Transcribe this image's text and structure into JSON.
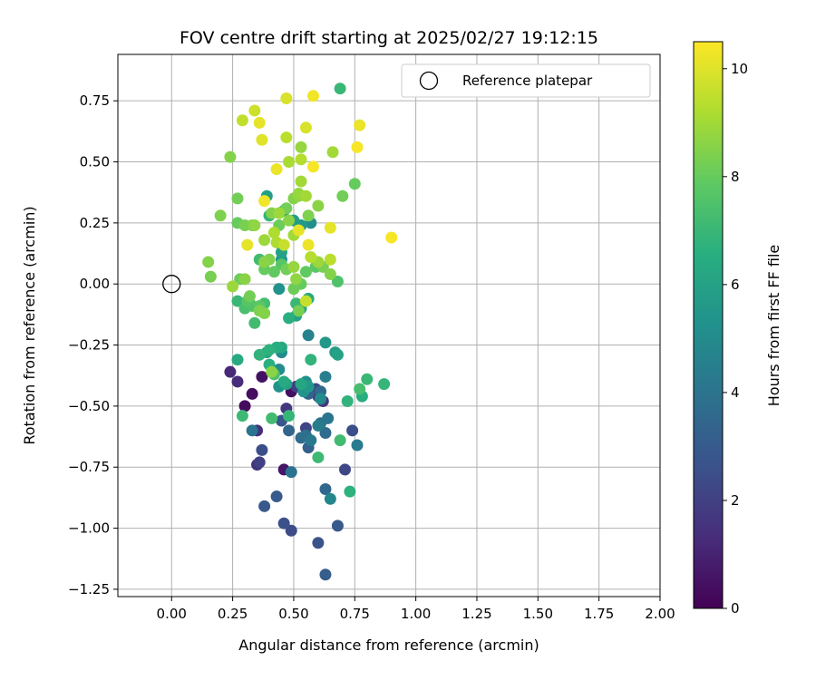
{
  "chart_data": {
    "type": "scatter",
    "title": "FOV centre drift starting at 2025/02/27 19:12:15",
    "xlabel": "Angular distance from reference (arcmin)",
    "ylabel": "Rotation from reference (arcmin)",
    "xlim": [
      -0.22,
      2.0
    ],
    "ylim": [
      -1.28,
      0.94
    ],
    "xticks": [
      0.0,
      0.25,
      0.5,
      0.75,
      1.0,
      1.25,
      1.5,
      1.75,
      2.0
    ],
    "xtick_labels": [
      "0.00",
      "0.25",
      "0.50",
      "0.75",
      "1.00",
      "1.25",
      "1.50",
      "1.75",
      "2.00"
    ],
    "yticks": [
      -1.25,
      -1.0,
      -0.75,
      -0.5,
      -0.25,
      0.0,
      0.25,
      0.5,
      0.75
    ],
    "ytick_labels": [
      "−1.25",
      "−1.00",
      "−0.75",
      "−0.50",
      "−0.25",
      "0.00",
      "0.25",
      "0.50",
      "0.75"
    ],
    "grid": true,
    "legend": {
      "position": "top-right",
      "label": "Reference platepar"
    },
    "reference_point": {
      "x": 0.0,
      "y": 0.0
    },
    "colorbar": {
      "label": "Hours from first FF file",
      "colormap": "viridis",
      "range": [
        0,
        10.5
      ],
      "ticks": [
        0,
        2,
        4,
        6,
        8,
        10
      ],
      "tick_labels": [
        "0",
        "2",
        "4",
        "6",
        "8",
        "10"
      ]
    },
    "points": [
      [
        0.3,
        -0.5,
        0.3
      ],
      [
        0.33,
        -0.45,
        0.4
      ],
      [
        0.37,
        -0.38,
        0.5
      ],
      [
        0.49,
        -0.44,
        0.4
      ],
      [
        0.46,
        -0.76,
        0.6
      ],
      [
        0.24,
        -0.36,
        1.2
      ],
      [
        0.27,
        -0.4,
        1.3
      ],
      [
        0.35,
        -0.6,
        1.4
      ],
      [
        0.35,
        -0.74,
        1.5
      ],
      [
        0.47,
        -0.51,
        1.6
      ],
      [
        0.6,
        -0.46,
        1.8
      ],
      [
        0.62,
        -0.48,
        1.7
      ],
      [
        0.36,
        -0.73,
        2.0
      ],
      [
        0.51,
        -0.42,
        1.9
      ],
      [
        0.55,
        -0.59,
        2.1
      ],
      [
        0.59,
        -0.43,
        2.3
      ],
      [
        0.37,
        -0.68,
        2.5
      ],
      [
        0.45,
        -0.56,
        2.8
      ],
      [
        0.38,
        -0.91,
        2.9
      ],
      [
        0.43,
        -0.87,
        3.0
      ],
      [
        0.46,
        -0.98,
        2.6
      ],
      [
        0.49,
        -1.01,
        2.4
      ],
      [
        0.6,
        -1.06,
        2.7
      ],
      [
        0.63,
        -1.19,
        3.1
      ],
      [
        0.68,
        -0.99,
        2.9
      ],
      [
        0.71,
        -0.76,
        2.2
      ],
      [
        0.74,
        -0.6,
        2.5
      ],
      [
        0.56,
        -0.67,
        3.2
      ],
      [
        0.63,
        -0.84,
        3.5
      ],
      [
        0.65,
        -0.88,
        4.8
      ],
      [
        0.48,
        -0.6,
        3.4
      ],
      [
        0.49,
        -0.77,
        4.0
      ],
      [
        0.53,
        -0.63,
        3.6
      ],
      [
        0.55,
        -0.62,
        3.8
      ],
      [
        0.57,
        -0.64,
        4.2
      ],
      [
        0.6,
        -0.58,
        4.4
      ],
      [
        0.61,
        -0.57,
        3.9
      ],
      [
        0.63,
        -0.61,
        3.7
      ],
      [
        0.64,
        -0.55,
        4.1
      ],
      [
        0.76,
        -0.66,
        4.3
      ],
      [
        0.33,
        -0.6,
        4.0
      ],
      [
        0.56,
        -0.45,
        3.3
      ],
      [
        0.61,
        -0.44,
        3.6
      ],
      [
        0.63,
        -0.38,
        4.5
      ],
      [
        0.61,
        -0.47,
        5.0
      ],
      [
        0.56,
        -0.21,
        4.6
      ],
      [
        0.63,
        -0.24,
        5.5
      ],
      [
        0.67,
        -0.28,
        5.8
      ],
      [
        0.68,
        -0.29,
        6.0
      ],
      [
        0.55,
        -0.4,
        5.2
      ],
      [
        0.56,
        -0.42,
        5.6
      ],
      [
        0.54,
        -0.44,
        5.4
      ],
      [
        0.53,
        -0.41,
        6.2
      ],
      [
        0.44,
        -0.35,
        5.1
      ],
      [
        0.45,
        -0.28,
        5.0
      ],
      [
        0.43,
        -0.26,
        6.5
      ],
      [
        0.45,
        -0.26,
        6.3
      ],
      [
        0.4,
        -0.27,
        6.7
      ],
      [
        0.36,
        -0.29,
        6.8
      ],
      [
        0.39,
        -0.28,
        6.1
      ],
      [
        0.4,
        -0.33,
        6.6
      ],
      [
        0.42,
        -0.37,
        7.4
      ],
      [
        0.44,
        -0.42,
        5.3
      ],
      [
        0.46,
        -0.4,
        6.4
      ],
      [
        0.47,
        -0.41,
        6.0
      ],
      [
        0.27,
        -0.31,
        6.4
      ],
      [
        0.29,
        -0.54,
        7.1
      ],
      [
        0.41,
        -0.55,
        7.2
      ],
      [
        0.48,
        -0.54,
        6.9
      ],
      [
        0.57,
        -0.31,
        6.8
      ],
      [
        0.6,
        -0.71,
        7.1
      ],
      [
        0.69,
        -0.64,
        7.2
      ],
      [
        0.72,
        -0.48,
        6.8
      ],
      [
        0.73,
        -0.85,
        6.7
      ],
      [
        0.78,
        -0.46,
        6.5
      ],
      [
        0.8,
        -0.39,
        7.0
      ],
      [
        0.77,
        -0.43,
        7.3
      ],
      [
        0.87,
        -0.41,
        6.9
      ],
      [
        0.56,
        -0.06,
        6.4
      ],
      [
        0.53,
        -0.1,
        6.2
      ],
      [
        0.51,
        -0.13,
        6.0
      ],
      [
        0.48,
        -0.14,
        6.6
      ],
      [
        0.44,
        -0.02,
        5.3
      ],
      [
        0.45,
        0.1,
        5.5
      ],
      [
        0.45,
        0.13,
        6.0
      ],
      [
        0.46,
        0.3,
        6.3
      ],
      [
        0.5,
        0.26,
        5.8
      ],
      [
        0.53,
        0.24,
        5.6
      ],
      [
        0.57,
        0.25,
        5.2
      ],
      [
        0.39,
        0.36,
        5.9
      ],
      [
        0.4,
        0.28,
        6.8
      ],
      [
        0.51,
        -0.08,
        7.0
      ],
      [
        0.36,
        -0.1,
        7.1
      ],
      [
        0.33,
        -0.09,
        7.6
      ],
      [
        0.32,
        -0.08,
        6.5
      ],
      [
        0.36,
        -0.09,
        7.8
      ],
      [
        0.38,
        -0.08,
        7.3
      ],
      [
        0.34,
        -0.16,
        7.2
      ],
      [
        0.3,
        -0.1,
        7.4
      ],
      [
        0.31,
        -0.07,
        7.7
      ],
      [
        0.27,
        -0.07,
        7.0
      ],
      [
        0.32,
        -0.05,
        8.2
      ],
      [
        0.36,
        -0.11,
        8.4
      ],
      [
        0.38,
        -0.12,
        8.5
      ],
      [
        0.41,
        -0.36,
        8.6
      ],
      [
        0.52,
        -0.11,
        8.3
      ],
      [
        0.55,
        -0.07,
        9.6
      ],
      [
        0.5,
        -0.02,
        8.1
      ],
      [
        0.51,
        0.02,
        8.7
      ],
      [
        0.53,
        0.0,
        8.0
      ],
      [
        0.55,
        0.05,
        7.9
      ],
      [
        0.59,
        0.07,
        7.8
      ],
      [
        0.62,
        0.07,
        8.3
      ],
      [
        0.65,
        0.04,
        8.5
      ],
      [
        0.68,
        0.01,
        7.5
      ],
      [
        0.5,
        0.07,
        8.8
      ],
      [
        0.47,
        0.06,
        8.2
      ],
      [
        0.45,
        0.08,
        7.7
      ],
      [
        0.42,
        0.05,
        7.9
      ],
      [
        0.38,
        0.06,
        8.0
      ],
      [
        0.38,
        0.09,
        8.6
      ],
      [
        0.36,
        0.1,
        7.2
      ],
      [
        0.4,
        0.1,
        8.4
      ],
      [
        0.43,
        0.17,
        9.2
      ],
      [
        0.46,
        0.16,
        9.6
      ],
      [
        0.5,
        0.2,
        9.0
      ],
      [
        0.52,
        0.22,
        10.1
      ],
      [
        0.56,
        0.16,
        10.2
      ],
      [
        0.57,
        0.11,
        9.3
      ],
      [
        0.6,
        0.09,
        8.9
      ],
      [
        0.65,
        0.1,
        9.4
      ],
      [
        0.65,
        0.23,
        10.1
      ],
      [
        0.6,
        0.32,
        8.6
      ],
      [
        0.56,
        0.28,
        8.4
      ],
      [
        0.55,
        0.36,
        9.0
      ],
      [
        0.52,
        0.36,
        8.7
      ],
      [
        0.5,
        0.35,
        8.5
      ],
      [
        0.47,
        0.31,
        8.2
      ],
      [
        0.44,
        0.29,
        7.8
      ],
      [
        0.44,
        0.24,
        8.1
      ],
      [
        0.42,
        0.21,
        9.2
      ],
      [
        0.38,
        0.18,
        8.9
      ],
      [
        0.34,
        0.24,
        8.7
      ],
      [
        0.33,
        0.24,
        8.4
      ],
      [
        0.3,
        0.24,
        8.3
      ],
      [
        0.27,
        0.25,
        8.0
      ],
      [
        0.31,
        0.16,
        10.1
      ],
      [
        0.3,
        0.02,
        8.6
      ],
      [
        0.28,
        0.02,
        8.1
      ],
      [
        0.25,
        -0.01,
        8.9
      ],
      [
        0.2,
        0.28,
        8.4
      ],
      [
        0.15,
        0.09,
        8.5
      ],
      [
        0.16,
        0.03,
        8.3
      ],
      [
        0.27,
        0.35,
        8.2
      ],
      [
        0.38,
        0.34,
        10.3
      ],
      [
        0.41,
        0.29,
        8.5
      ],
      [
        0.44,
        0.29,
        8.9
      ],
      [
        0.48,
        0.26,
        8.6
      ],
      [
        0.52,
        0.37,
        8.8
      ],
      [
        0.53,
        0.42,
        9.0
      ],
      [
        0.53,
        0.56,
        8.8
      ],
      [
        0.53,
        0.51,
        9.3
      ],
      [
        0.48,
        0.5,
        9.1
      ],
      [
        0.47,
        0.6,
        9.4
      ],
      [
        0.43,
        0.47,
        10.2
      ],
      [
        0.37,
        0.59,
        10.0
      ],
      [
        0.36,
        0.66,
        10.1
      ],
      [
        0.34,
        0.71,
        9.7
      ],
      [
        0.29,
        0.67,
        9.5
      ],
      [
        0.24,
        0.52,
        8.5
      ],
      [
        0.47,
        0.76,
        9.9
      ],
      [
        0.58,
        0.77,
        10.3
      ],
      [
        0.55,
        0.64,
        9.9
      ],
      [
        0.58,
        0.48,
        10.4
      ],
      [
        0.66,
        0.54,
        9.0
      ],
      [
        0.7,
        0.36,
        8.2
      ],
      [
        0.75,
        0.41,
        8.0
      ],
      [
        0.76,
        0.56,
        10.4
      ],
      [
        0.77,
        0.65,
        10.2
      ],
      [
        0.69,
        0.8,
        7.0
      ],
      [
        0.9,
        0.19,
        10.4
      ]
    ]
  }
}
